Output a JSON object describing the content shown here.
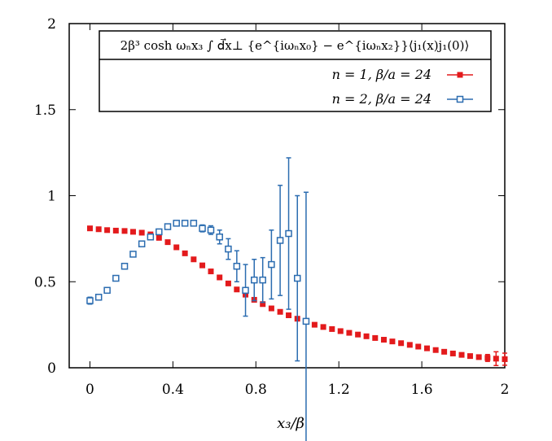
{
  "chart_data": {
    "type": "scatter",
    "title": "",
    "xlabel": "x₃/β",
    "ylabel": "",
    "xlim": [
      -0.1,
      2.0
    ],
    "ylim": [
      0,
      2
    ],
    "xticks": [
      0,
      0.4,
      0.8,
      1.2,
      1.6,
      2
    ],
    "xtick_labels": [
      "0",
      "0.4",
      "0.8",
      "1.2",
      "1.6",
      "2"
    ],
    "yticks": [
      0,
      0.5,
      1,
      1.5,
      2
    ],
    "ytick_labels": [
      "0",
      "0.5",
      "1",
      "1.5",
      "2"
    ],
    "grid": false,
    "legend_position": "top-right",
    "legend_title": "2β³ cosh ωₙx₃ ∫ d⃗x⊥ {e^{iωₙx₀} − e^{iωₙx₂}}⟨j₁(x)j₁(0)⟩",
    "series": [
      {
        "name": "n = 1, β/a = 24",
        "color": "#e31a1c",
        "marker": "filled-square",
        "x": [
          0,
          0.042,
          0.083,
          0.125,
          0.167,
          0.208,
          0.25,
          0.292,
          0.333,
          0.375,
          0.417,
          0.458,
          0.5,
          0.542,
          0.583,
          0.625,
          0.667,
          0.708,
          0.75,
          0.792,
          0.833,
          0.875,
          0.917,
          0.958,
          1.0,
          1.042,
          1.083,
          1.125,
          1.167,
          1.208,
          1.25,
          1.292,
          1.333,
          1.375,
          1.417,
          1.458,
          1.5,
          1.542,
          1.583,
          1.625,
          1.667,
          1.708,
          1.75,
          1.792,
          1.833,
          1.875,
          1.917,
          1.958,
          2.0
        ],
        "y": [
          0.81,
          0.805,
          0.8,
          0.797,
          0.795,
          0.79,
          0.785,
          0.775,
          0.755,
          0.73,
          0.7,
          0.665,
          0.63,
          0.595,
          0.56,
          0.525,
          0.49,
          0.455,
          0.425,
          0.395,
          0.37,
          0.345,
          0.325,
          0.305,
          0.285,
          0.27,
          0.25,
          0.237,
          0.225,
          0.213,
          0.203,
          0.193,
          0.183,
          0.173,
          0.163,
          0.153,
          0.143,
          0.133,
          0.123,
          0.113,
          0.103,
          0.093,
          0.083,
          0.075,
          0.068,
          0.062,
          0.057,
          0.053,
          0.05
        ],
        "err": [
          0.005,
          0.005,
          0.005,
          0.005,
          0.005,
          0.005,
          0.005,
          0.005,
          0.005,
          0.005,
          0.005,
          0.005,
          0.005,
          0.005,
          0.005,
          0.005,
          0.005,
          0.005,
          0.005,
          0.005,
          0.005,
          0.005,
          0.005,
          0.005,
          0.005,
          0.005,
          0.005,
          0.005,
          0.005,
          0.005,
          0.005,
          0.005,
          0.005,
          0.005,
          0.005,
          0.005,
          0.005,
          0.005,
          0.005,
          0.005,
          0.005,
          0.005,
          0.005,
          0.005,
          0.005,
          0.005,
          0.02,
          0.04,
          0.035
        ]
      },
      {
        "name": "n = 2, β/a = 24",
        "color": "#2b6cb0",
        "marker": "open-square",
        "x": [
          0,
          0.042,
          0.083,
          0.125,
          0.167,
          0.208,
          0.25,
          0.292,
          0.333,
          0.375,
          0.417,
          0.458,
          0.5,
          0.542,
          0.583,
          0.625,
          0.667,
          0.708,
          0.75,
          0.792,
          0.833,
          0.875,
          0.917,
          0.958,
          1.0,
          1.042
        ],
        "y": [
          0.39,
          0.41,
          0.45,
          0.52,
          0.59,
          0.66,
          0.72,
          0.76,
          0.79,
          0.82,
          0.84,
          0.84,
          0.84,
          0.81,
          0.8,
          0.76,
          0.69,
          0.59,
          0.45,
          0.51,
          0.51,
          0.6,
          0.74,
          0.78,
          0.52,
          0.27
        ],
        "err": [
          0.02,
          0.015,
          0.015,
          0.015,
          0.015,
          0.015,
          0.015,
          0.015,
          0.015,
          0.015,
          0.015,
          0.015,
          0.015,
          0.02,
          0.025,
          0.04,
          0.06,
          0.09,
          0.15,
          0.12,
          0.13,
          0.2,
          0.32,
          0.44,
          0.48,
          0.75
        ]
      }
    ]
  }
}
